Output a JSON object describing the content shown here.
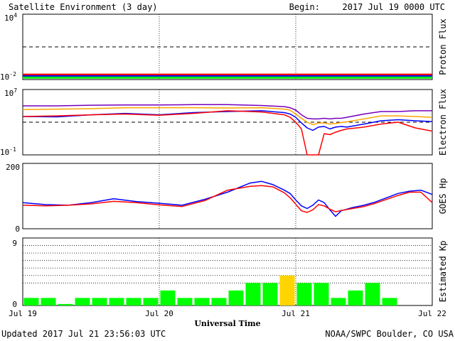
{
  "header": {
    "title": "Satellite Environment (3 day)",
    "begin_label": "Begin:",
    "begin_value": "2017 Jul 19 0000 UTC"
  },
  "footer": {
    "updated": "Updated 2017 Jul 21 23:56:03 UTC",
    "credit": "NOAA/SWPC Boulder, CO USA"
  },
  "x_axis": {
    "label": "Universal Time",
    "ticks": [
      "Jul 19",
      "Jul 20",
      "Jul 21",
      "Jul 22"
    ]
  },
  "colors": {
    "red": "#ff0000",
    "blue": "#0000ff",
    "green": "#00ee00",
    "orange": "#ffa500",
    "purple": "#7700bb",
    "kp_normal": "#00ff00",
    "kp_storm_watch": "#ffd400"
  },
  "chart_data": [
    {
      "type": "line",
      "panel": "proton_flux",
      "ylabel": "Proton Flux",
      "yscale": "log",
      "ylim": [
        0.01,
        10000
      ],
      "y_ticks": {
        "base": "10",
        "top_exp": "4",
        "bottom_exp": "-2"
      },
      "threshold": 10,
      "x_unit": "hours since 2017 Jul 19 0000 UTC",
      "x": [
        0,
        72
      ],
      "series": [
        {
          "color": "red",
          "values": [
            0.028,
            0.028
          ]
        },
        {
          "color": "blue",
          "values": [
            0.02,
            0.02
          ]
        },
        {
          "color": "green",
          "values": [
            0.015,
            0.015
          ]
        }
      ]
    },
    {
      "type": "line",
      "panel": "electron_flux",
      "ylabel": "Electron Flux",
      "yscale": "log",
      "ylim": [
        0.1,
        10000000
      ],
      "y_ticks": {
        "base": "10",
        "top_exp": "7",
        "bottom_exp": "-1"
      },
      "threshold": 1000,
      "x": [
        0,
        6,
        12,
        18,
        24,
        30,
        36,
        42,
        46,
        47,
        48,
        49,
        50,
        51,
        52,
        53,
        54,
        55,
        56,
        57,
        60,
        63,
        66,
        69,
        72
      ],
      "series": [
        {
          "color": "purple",
          "values": [
            100000,
            100000,
            120000,
            130000,
            130000,
            140000,
            140000,
            110000,
            80000,
            60000,
            30000,
            8000,
            3000,
            2500,
            2500,
            3000,
            2500,
            3000,
            3000,
            4000,
            10000,
            20000,
            20000,
            25000,
            25000
          ]
        },
        {
          "color": "orange",
          "values": [
            35000,
            40000,
            45000,
            60000,
            60000,
            60000,
            55000,
            60000,
            40000,
            30000,
            10000,
            3000,
            1000,
            500,
            800,
            800,
            600,
            700,
            900,
            1100,
            2500,
            6000,
            6000,
            5000,
            4000
          ]
        },
        {
          "color": "blue",
          "values": [
            5000,
            4500,
            8000,
            12000,
            8000,
            15000,
            20000,
            25000,
            15000,
            10000,
            4000,
            800,
            200,
            100,
            250,
            300,
            150,
            250,
            300,
            250,
            600,
            1500,
            2000,
            1500,
            1200
          ]
        },
        {
          "color": "red",
          "values": [
            5000,
            6000,
            8000,
            10000,
            7000,
            12000,
            25000,
            18000,
            8000,
            4000,
            1000,
            150,
            0.1,
            0.1,
            0.1,
            40,
            30,
            60,
            100,
            150,
            250,
            600,
            1000,
            200,
            80
          ]
        }
      ]
    },
    {
      "type": "line",
      "panel": "goes_hp",
      "ylabel": "GOES Hp",
      "ylim": [
        0,
        200
      ],
      "y_ticks": [
        "200",
        "0"
      ],
      "x": [
        0,
        4,
        8,
        12,
        16,
        20,
        24,
        28,
        32,
        36,
        40,
        42,
        44,
        46,
        47,
        48,
        49,
        50,
        51,
        52,
        53,
        54,
        55,
        56,
        58,
        60,
        62,
        64,
        66,
        68,
        70,
        72
      ],
      "series": [
        {
          "color": "blue",
          "values": [
            80,
            74,
            72,
            80,
            92,
            83,
            78,
            72,
            90,
            112,
            140,
            145,
            135,
            118,
            108,
            88,
            70,
            62,
            72,
            88,
            80,
            58,
            38,
            55,
            65,
            72,
            82,
            95,
            108,
            115,
            118,
            105
          ]
        },
        {
          "color": "red",
          "values": [
            72,
            70,
            72,
            76,
            84,
            80,
            73,
            68,
            86,
            118,
            130,
            132,
            128,
            110,
            95,
            75,
            55,
            50,
            58,
            74,
            70,
            60,
            52,
            56,
            62,
            68,
            78,
            90,
            102,
            112,
            112,
            80
          ]
        }
      ]
    },
    {
      "type": "bar",
      "panel": "estimated_kp",
      "ylabel": "Estimated Kp",
      "ylim": [
        0,
        9
      ],
      "y_ticks": [
        "9",
        "0"
      ],
      "gridlines": [
        3,
        4,
        5,
        6,
        7,
        8,
        9
      ],
      "bin_hours": 3,
      "values": [
        1,
        1,
        0.2,
        1,
        1,
        1,
        1,
        1,
        2,
        1,
        1,
        1,
        2,
        3,
        3,
        4,
        3,
        3,
        1,
        2,
        3,
        1,
        0,
        0
      ],
      "highlight_index": 15
    }
  ]
}
